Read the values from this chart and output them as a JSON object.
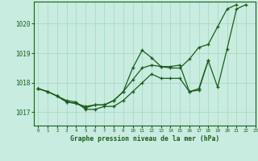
{
  "title": "Graphe pression niveau de la mer (hPa)",
  "background_color": "#c8ece0",
  "grid_color": "#a8d4c0",
  "line_color": "#1a5c1a",
  "xlim": [
    -0.5,
    23
  ],
  "ylim": [
    1016.55,
    1020.75
  ],
  "yticks": [
    1017,
    1018,
    1019,
    1020
  ],
  "xticks": [
    0,
    1,
    2,
    3,
    4,
    5,
    6,
    7,
    8,
    9,
    10,
    11,
    12,
    13,
    14,
    15,
    16,
    17,
    18,
    19,
    20,
    21,
    22,
    23
  ],
  "series1": {
    "x": [
      0,
      1,
      2,
      3,
      4,
      5,
      6,
      7,
      8,
      9,
      10,
      11,
      12,
      13,
      14,
      15,
      16,
      17,
      18,
      19,
      20,
      21,
      22
    ],
    "y": [
      1017.8,
      1017.7,
      1017.55,
      1017.4,
      1017.35,
      1017.1,
      1017.1,
      1017.2,
      1017.2,
      1017.4,
      1017.7,
      1018.0,
      1018.3,
      1018.15,
      1018.15,
      1018.15,
      1017.7,
      1017.75,
      1018.75,
      1017.85,
      1019.15,
      1020.5,
      1020.65
    ]
  },
  "series2": {
    "x": [
      0,
      1,
      2,
      3,
      4,
      5,
      6,
      7,
      8,
      9,
      10,
      11,
      12,
      13,
      14,
      15,
      16,
      17,
      18,
      19,
      20,
      21
    ],
    "y": [
      1017.8,
      1017.7,
      1017.55,
      1017.35,
      1017.3,
      1017.2,
      1017.25,
      1017.25,
      1017.4,
      1017.7,
      1018.1,
      1018.5,
      1018.6,
      1018.55,
      1018.5,
      1018.5,
      1018.8,
      1019.2,
      1019.3,
      1019.9,
      1020.5,
      1020.65
    ]
  },
  "series3": {
    "x": [
      0,
      1,
      2,
      3,
      4,
      5,
      6,
      7,
      8,
      9,
      10,
      11,
      12,
      13,
      14,
      15,
      16,
      17,
      18
    ],
    "y": [
      1017.8,
      1017.7,
      1017.55,
      1017.35,
      1017.3,
      1017.15,
      1017.25,
      1017.25,
      1017.4,
      1017.7,
      1018.5,
      1019.1,
      1018.85,
      1018.55,
      1018.55,
      1018.6,
      1017.7,
      1017.8,
      1018.75
    ]
  },
  "marker": "+",
  "markersize": 3,
  "linewidth": 0.9
}
